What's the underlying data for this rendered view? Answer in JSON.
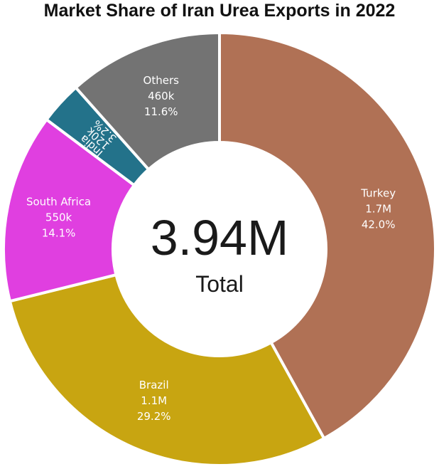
{
  "chart_data": {
    "type": "pie",
    "variant": "donut",
    "title": "Market Share of Iran Urea Exports in 2022",
    "center_value": "3.94M",
    "center_caption": "Total",
    "slices": [
      {
        "name": "Turkey",
        "value_label": "1.7M",
        "percent_label": "42.0%",
        "percent": 42.0,
        "color": "#b07155"
      },
      {
        "name": "Brazil",
        "value_label": "1.1M",
        "percent_label": "29.2%",
        "percent": 29.2,
        "color": "#c8a511"
      },
      {
        "name": "South Africa",
        "value_label": "550k",
        "percent_label": "14.1%",
        "percent": 14.1,
        "color": "#e03fe0"
      },
      {
        "name": "India",
        "value_label": "120k",
        "percent_label": "3.2%",
        "percent": 3.2,
        "color": "#23728a"
      },
      {
        "name": "Others",
        "value_label": "460k",
        "percent_label": "11.6%",
        "percent": 11.6,
        "color": "#737373"
      }
    ]
  }
}
